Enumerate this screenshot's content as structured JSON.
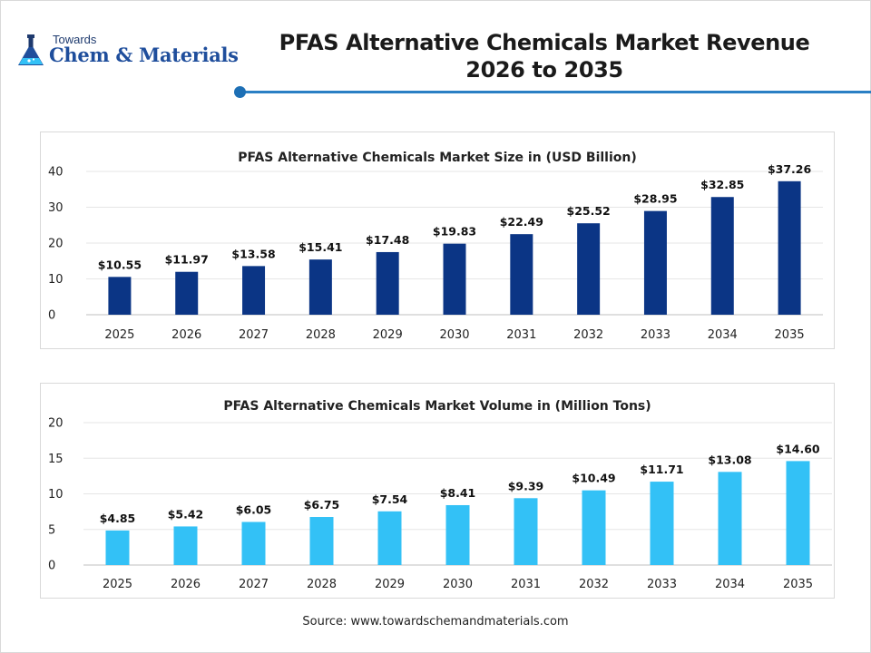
{
  "logo": {
    "towards": "Towards",
    "main": "Chem & Materials"
  },
  "header": {
    "title_line1": "PFAS Alternative Chemicals Market Revenue",
    "title_line2": "2026 to 2035"
  },
  "colors": {
    "revenue_bar": "#0b3585",
    "volume_bar": "#33c1f6",
    "accent": "#2a7fc4"
  },
  "chart_data": [
    {
      "type": "bar",
      "title": "PFAS Alternative Chemicals Market Size in (USD Billion)",
      "categories": [
        "2025",
        "2026",
        "2027",
        "2028",
        "2029",
        "2030",
        "2031",
        "2032",
        "2033",
        "2034",
        "2035"
      ],
      "values": [
        10.55,
        11.97,
        13.58,
        15.41,
        17.48,
        19.83,
        22.49,
        25.52,
        28.95,
        32.85,
        37.26
      ],
      "data_labels": [
        "$10.55",
        "$11.97",
        "$13.58",
        "$15.41",
        "$17.48",
        "$19.83",
        "$22.49",
        "$25.52",
        "$28.95",
        "$32.85",
        "$37.26"
      ],
      "ylim": [
        0,
        40
      ],
      "yticks": [
        0,
        10,
        20,
        30,
        40
      ],
      "grid": true,
      "legend": "none"
    },
    {
      "type": "bar",
      "title": "PFAS Alternative Chemicals Market Volume in (Million Tons)",
      "categories": [
        "2025",
        "2026",
        "2027",
        "2028",
        "2029",
        "2030",
        "2031",
        "2032",
        "2033",
        "2034",
        "2035"
      ],
      "values": [
        4.85,
        5.42,
        6.05,
        6.75,
        7.54,
        8.41,
        9.39,
        10.49,
        11.71,
        13.08,
        14.6
      ],
      "data_labels": [
        "$4.85",
        "$5.42",
        "$6.05",
        "$6.75",
        "$7.54",
        "$8.41",
        "$9.39",
        "$10.49",
        "$11.71",
        "$13.08",
        "$14.60"
      ],
      "ylim": [
        0,
        20
      ],
      "yticks": [
        0,
        5,
        10,
        15,
        20
      ],
      "grid": true,
      "legend": "none"
    }
  ],
  "footer": {
    "source": "Source: www.towardschemandmaterials.com"
  }
}
